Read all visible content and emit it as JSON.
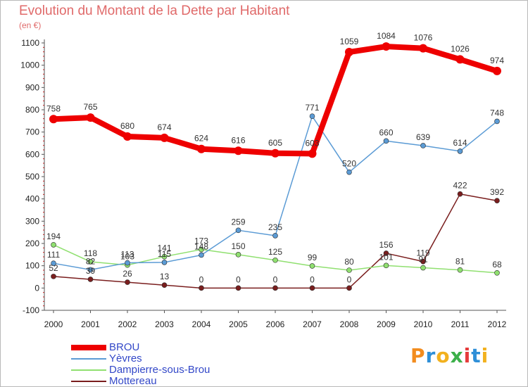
{
  "title": "Evolution du Montant de la Dette par Habitant",
  "unit": "(en €)",
  "logo": {
    "letters": [
      "P",
      "r",
      "o",
      "x",
      "i",
      "t",
      "i"
    ],
    "colors": [
      "#f28c1e",
      "#2e8fd8",
      "#f2b11e",
      "#3cb04a",
      "#e53b3b",
      "#2e8fd8",
      "#f2b11e"
    ]
  },
  "chart_data": {
    "type": "line",
    "title": "Evolution du Montant de la Dette par Habitant",
    "ylabel": "(en €)",
    "x": [
      "2000",
      "2001",
      "2002",
      "2003",
      "2004",
      "2005",
      "2006",
      "2007",
      "2008",
      "2009",
      "2010",
      "2011",
      "2012"
    ],
    "ylim": [
      -100,
      1100
    ],
    "yticks": [
      "-100",
      "0",
      "100",
      "200",
      "300",
      "400",
      "500",
      "600",
      "700",
      "800",
      "900",
      "1000",
      "1100"
    ],
    "grid": false,
    "legend_position": "bottom-left",
    "series": [
      {
        "name": "BROU",
        "color": "#ee0000",
        "values": [
          758,
          765,
          680,
          674,
          624,
          616,
          605,
          603,
          1059,
          1084,
          1076,
          1026,
          974
        ],
        "labels": [
          "758",
          "765",
          "680",
          "674",
          "624",
          "616",
          "605",
          "603",
          "1059",
          "1084",
          "1076",
          "1026",
          "974"
        ]
      },
      {
        "name": "Yèvres",
        "color": "#5b9bd5",
        "values": [
          111,
          82,
          113,
          115,
          148,
          259,
          235,
          771,
          520,
          660,
          639,
          614,
          748
        ],
        "labels": [
          "111",
          "82",
          "113",
          "115",
          "148",
          "259",
          "235",
          "771",
          "520",
          "660",
          "639",
          "614",
          "748"
        ]
      },
      {
        "name": "Dampierre-sous-Brou",
        "color": "#90e070",
        "values": [
          194,
          118,
          103,
          141,
          173,
          150,
          125,
          99,
          80,
          101,
          91,
          81,
          68
        ],
        "labels": [
          "194",
          "118",
          "103",
          "141",
          "173",
          "150",
          "125",
          "99",
          "80",
          "101",
          "91",
          "81",
          "68"
        ]
      },
      {
        "name": "Mottereau",
        "color": "#7a1e1e",
        "values": [
          52,
          39,
          26,
          13,
          0,
          0,
          0,
          0,
          0,
          156,
          119,
          422,
          392
        ],
        "labels": [
          "52",
          "39",
          "26",
          "13",
          "0",
          "0",
          "0",
          "0",
          "0",
          "156",
          "119",
          "422",
          "392"
        ]
      }
    ]
  }
}
